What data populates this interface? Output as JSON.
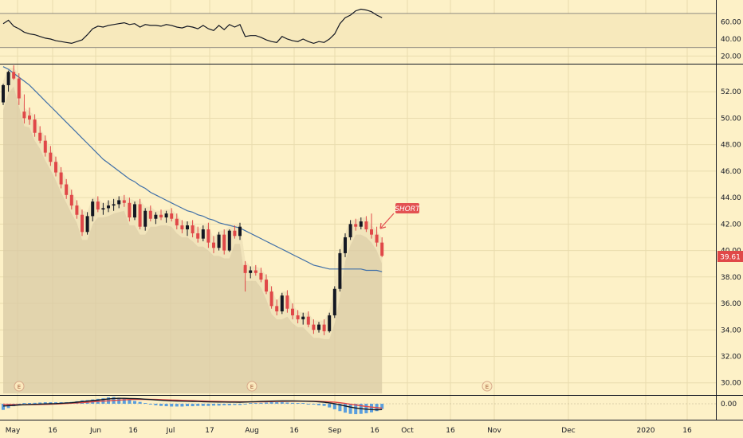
{
  "colors": {
    "background": "#fdf1c7",
    "grid": "#e9dcae",
    "up": "#131722",
    "down": "#e04848",
    "ma": "#3f6fa8",
    "area": "#d8caa4",
    "badge": "#e35252",
    "rsi_line": "#131722",
    "macd_line": "#131722",
    "signal_line": "#e04848",
    "histogram": "#3d8fe0"
  },
  "price_axis": {
    "ylim": [
      29.2,
      54.0
    ],
    "ticks": [
      "30.00",
      "32.00",
      "34.00",
      "36.00",
      "38.00",
      "40.00",
      "42.00",
      "44.00",
      "46.00",
      "48.00",
      "50.00",
      "52.00"
    ],
    "last_price": "39.61"
  },
  "rsi_axis": {
    "ylim": [
      12,
      82
    ],
    "ticks": [
      "20.00",
      "40.00",
      "60.00"
    ]
  },
  "macd_axis": {
    "ticks": [
      "0.00"
    ]
  },
  "time_axis": {
    "ticks": [
      "May",
      "16",
      "Jun",
      "16",
      "Jul",
      "17",
      "Aug",
      "16",
      "Sep",
      "16",
      "Oct",
      "16",
      "Nov",
      "Dec",
      "2020",
      "16"
    ]
  },
  "annotation": {
    "label": "SHORT",
    "icon": "arrow-icon"
  },
  "earnings_markers": [
    "E",
    "E",
    "E"
  ],
  "chart_data": {
    "type": "candlestick",
    "title": "",
    "series": [
      {
        "name": "",
        "values": [
          [
            51.2,
            52.6,
            51.0,
            52.5
          ],
          [
            52.5,
            53.6,
            52.0,
            53.5
          ],
          [
            53.5,
            54.0,
            52.9,
            53.0
          ],
          [
            53.0,
            53.4,
            51.0,
            51.5
          ],
          [
            50.5,
            51.8,
            49.6,
            50.0
          ],
          [
            50.2,
            50.8,
            49.5,
            49.9
          ],
          [
            49.9,
            50.3,
            48.6,
            48.9
          ],
          [
            48.9,
            49.4,
            48.1,
            48.3
          ],
          [
            48.3,
            48.7,
            47.1,
            47.4
          ],
          [
            47.4,
            47.9,
            46.4,
            46.7
          ],
          [
            46.7,
            47.1,
            45.6,
            45.9
          ],
          [
            45.9,
            46.3,
            44.7,
            45.0
          ],
          [
            45.0,
            45.4,
            43.9,
            44.2
          ],
          [
            44.2,
            44.6,
            43.1,
            43.4
          ],
          [
            43.4,
            43.8,
            42.4,
            42.7
          ],
          [
            42.7,
            43.1,
            41.1,
            41.4
          ],
          [
            41.4,
            42.9,
            41.2,
            42.6
          ],
          [
            42.6,
            43.9,
            42.2,
            43.7
          ],
          [
            43.7,
            44.1,
            42.9,
            43.1
          ],
          [
            43.1,
            43.6,
            42.7,
            43.2
          ],
          [
            43.2,
            43.8,
            42.9,
            43.4
          ],
          [
            43.4,
            43.9,
            43.0,
            43.5
          ],
          [
            43.5,
            44.1,
            43.2,
            43.8
          ],
          [
            43.8,
            44.2,
            43.3,
            43.6
          ],
          [
            43.6,
            44.0,
            42.2,
            42.5
          ],
          [
            42.5,
            43.7,
            42.3,
            43.5
          ],
          [
            43.5,
            43.9,
            41.6,
            41.8
          ],
          [
            41.8,
            43.2,
            41.5,
            43.0
          ],
          [
            43.0,
            43.4,
            42.2,
            42.4
          ],
          [
            42.4,
            42.9,
            42.0,
            42.7
          ],
          [
            42.7,
            43.1,
            42.3,
            42.5
          ],
          [
            42.5,
            43.0,
            42.1,
            42.8
          ],
          [
            42.8,
            43.2,
            42.2,
            42.4
          ],
          [
            42.4,
            42.8,
            41.6,
            41.9
          ],
          [
            41.9,
            42.3,
            41.3,
            41.6
          ],
          [
            41.6,
            42.2,
            41.1,
            41.9
          ],
          [
            41.9,
            42.3,
            41.0,
            41.3
          ],
          [
            41.3,
            41.8,
            40.6,
            40.9
          ],
          [
            40.9,
            41.9,
            40.7,
            41.6
          ],
          [
            41.6,
            42.1,
            40.2,
            40.6
          ],
          [
            40.6,
            41.1,
            39.8,
            40.2
          ],
          [
            40.2,
            41.4,
            40.0,
            41.2
          ],
          [
            41.2,
            41.6,
            39.7,
            40.0
          ],
          [
            40.0,
            41.6,
            39.9,
            41.5
          ],
          [
            41.5,
            41.9,
            40.9,
            41.1
          ],
          [
            41.1,
            42.1,
            40.8,
            41.8
          ],
          [
            38.9,
            39.2,
            36.9,
            38.3
          ],
          [
            38.3,
            38.8,
            37.9,
            38.5
          ],
          [
            38.5,
            38.9,
            38.1,
            38.3
          ],
          [
            38.3,
            38.7,
            37.6,
            37.8
          ],
          [
            37.8,
            38.2,
            36.7,
            36.9
          ],
          [
            36.9,
            37.3,
            35.6,
            35.8
          ],
          [
            35.8,
            36.3,
            35.1,
            35.4
          ],
          [
            35.4,
            36.8,
            35.2,
            36.6
          ],
          [
            36.6,
            37.0,
            35.3,
            35.6
          ],
          [
            35.6,
            36.0,
            34.8,
            35.1
          ],
          [
            35.1,
            35.5,
            34.5,
            34.8
          ],
          [
            34.8,
            35.3,
            34.4,
            35.0
          ],
          [
            35.0,
            35.4,
            34.2,
            34.4
          ],
          [
            34.4,
            34.8,
            33.7,
            34.0
          ],
          [
            34.0,
            34.6,
            33.8,
            34.4
          ],
          [
            34.4,
            34.8,
            33.6,
            33.9
          ],
          [
            33.9,
            35.3,
            33.8,
            35.1
          ],
          [
            35.1,
            37.3,
            34.9,
            37.1
          ],
          [
            37.1,
            40.1,
            36.9,
            39.8
          ],
          [
            39.8,
            41.3,
            39.5,
            41.0
          ],
          [
            41.0,
            42.3,
            40.8,
            42.0
          ],
          [
            42.0,
            42.4,
            41.5,
            41.8
          ],
          [
            41.8,
            42.5,
            41.6,
            42.2
          ],
          [
            42.2,
            42.6,
            41.4,
            41.6
          ],
          [
            41.6,
            42.8,
            40.9,
            41.2
          ],
          [
            41.2,
            41.8,
            40.3,
            40.6
          ],
          [
            40.6,
            41.0,
            39.5,
            39.6
          ]
        ]
      },
      {
        "name": "",
        "values": [
          53.9,
          53.7,
          53.4,
          53.1,
          52.8,
          52.5,
          52.1,
          51.7,
          51.3,
          50.9,
          50.5,
          50.1,
          49.7,
          49.3,
          48.9,
          48.5,
          48.1,
          47.7,
          47.3,
          46.9,
          46.6,
          46.3,
          46.0,
          45.7,
          45.4,
          45.2,
          44.9,
          44.7,
          44.4,
          44.2,
          44.0,
          43.8,
          43.6,
          43.4,
          43.2,
          43.0,
          42.9,
          42.7,
          42.6,
          42.4,
          42.3,
          42.1,
          42.0,
          41.9,
          41.8,
          41.7,
          41.5,
          41.3,
          41.1,
          40.9,
          40.7,
          40.5,
          40.3,
          40.1,
          39.9,
          39.7,
          39.5,
          39.3,
          39.1,
          38.9,
          38.8,
          38.7,
          38.6,
          38.6,
          38.6,
          38.6,
          38.6,
          38.6,
          38.6,
          38.5,
          38.5,
          38.5,
          38.4
        ]
      },
      {
        "name": "",
        "values": [
          58,
          62,
          55,
          52,
          48,
          46,
          45,
          43,
          41,
          40,
          38,
          37,
          36,
          35,
          37,
          39,
          45,
          52,
          55,
          54,
          56,
          57,
          58,
          59,
          57,
          58,
          54,
          57,
          56,
          56,
          55,
          57,
          56,
          54,
          53,
          55,
          54,
          52,
          56,
          52,
          50,
          56,
          51,
          57,
          54,
          57,
          43,
          44,
          44,
          42,
          39,
          37,
          36,
          43,
          40,
          38,
          37,
          40,
          37,
          35,
          37,
          36,
          40,
          46,
          58,
          65,
          68,
          73,
          75,
          74,
          72,
          68,
          65
        ]
      },
      {
        "name": "",
        "values": [
          -0.25,
          -0.22,
          -0.18,
          -0.14,
          -0.11,
          -0.08,
          -0.06,
          -0.04,
          -0.02,
          0.0,
          0.02,
          0.05,
          0.08,
          0.12,
          0.18,
          0.25,
          0.3,
          0.36,
          0.42,
          0.48,
          0.55,
          0.6,
          0.62,
          0.62,
          0.6,
          0.58,
          0.56,
          0.52,
          0.48,
          0.44,
          0.4,
          0.37,
          0.34,
          0.32,
          0.3,
          0.29,
          0.27,
          0.26,
          0.24,
          0.22,
          0.21,
          0.2,
          0.2,
          0.19,
          0.19,
          0.18,
          0.2,
          0.22,
          0.24,
          0.26,
          0.28,
          0.3,
          0.31,
          0.32,
          0.32,
          0.32,
          0.31,
          0.3,
          0.28,
          0.26,
          0.22,
          0.18,
          0.1,
          0.0,
          -0.12,
          -0.25,
          -0.38,
          -0.48,
          -0.56,
          -0.62,
          -0.66,
          -0.68,
          -0.66
        ]
      },
      {
        "name": "",
        "values": [
          -0.05,
          -0.08,
          -0.1,
          -0.11,
          -0.11,
          -0.1,
          -0.09,
          -0.08,
          -0.07,
          -0.05,
          -0.03,
          0.0,
          0.03,
          0.06,
          0.1,
          0.14,
          0.18,
          0.22,
          0.26,
          0.3,
          0.34,
          0.38,
          0.42,
          0.45,
          0.47,
          0.49,
          0.5,
          0.5,
          0.5,
          0.49,
          0.47,
          0.45,
          0.43,
          0.41,
          0.39,
          0.37,
          0.35,
          0.33,
          0.31,
          0.29,
          0.27,
          0.26,
          0.25,
          0.24,
          0.23,
          0.22,
          0.22,
          0.22,
          0.22,
          0.23,
          0.24,
          0.25,
          0.26,
          0.27,
          0.28,
          0.29,
          0.29,
          0.29,
          0.29,
          0.28,
          0.27,
          0.25,
          0.22,
          0.18,
          0.12,
          0.04,
          -0.05,
          -0.14,
          -0.23,
          -0.31,
          -0.38,
          -0.44,
          -0.49
        ]
      }
    ]
  }
}
